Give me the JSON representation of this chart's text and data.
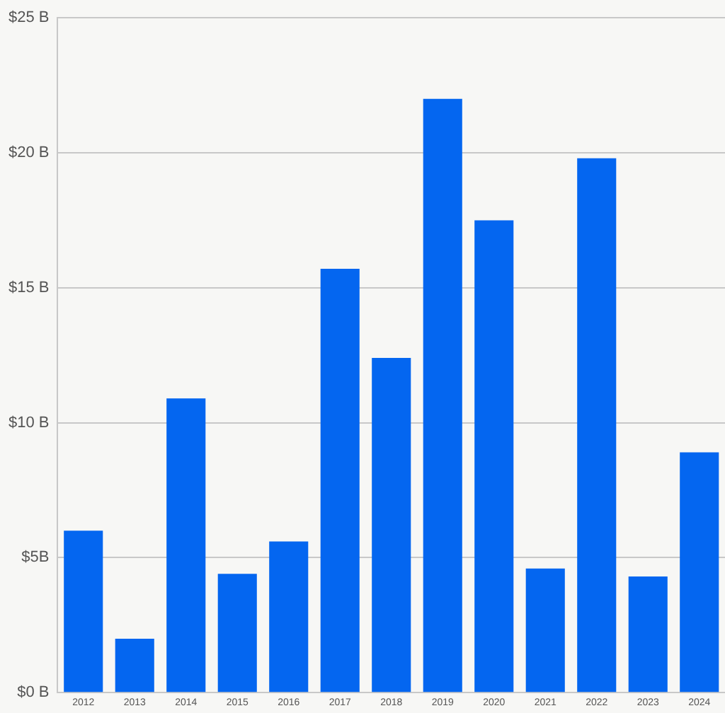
{
  "chart_data": {
    "type": "bar",
    "categories": [
      "2012",
      "2013",
      "2014",
      "2015",
      "2016",
      "2017",
      "2018",
      "2019",
      "2020",
      "2021",
      "2022",
      "2023",
      "2024"
    ],
    "values": [
      6.0,
      2.0,
      10.9,
      4.4,
      5.6,
      15.7,
      12.4,
      22.0,
      17.5,
      4.6,
      19.8,
      4.3,
      8.9
    ],
    "color": "#0466f0",
    "ylim": [
      0,
      25
    ],
    "yticks": [
      {
        "value": 0,
        "label": "$0 B"
      },
      {
        "value": 5,
        "label": "$5B"
      },
      {
        "value": 10,
        "label": "$10 B"
      },
      {
        "value": 15,
        "label": "$15 B"
      },
      {
        "value": 20,
        "label": "$20 B"
      },
      {
        "value": 25,
        "label": "$25 B"
      }
    ],
    "grid": "y",
    "legend": false
  }
}
